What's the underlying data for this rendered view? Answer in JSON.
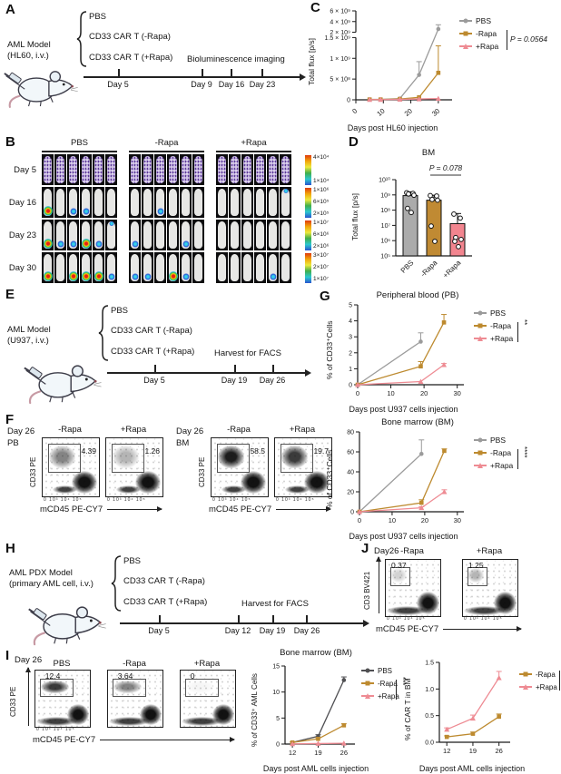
{
  "colors": {
    "pbs": "#9b9b9b",
    "pbs_dark": "#4f4f52",
    "minus_rapa": "#bd8a2f",
    "plus_rapa": "#ee8b93",
    "bar_pbs": "#ababab",
    "bar_minus": "#c08a33",
    "bar_plus": "#f2858f"
  },
  "flow": {
    "xticks": "0    10³   10⁴   10⁵"
  },
  "panelA": {
    "label": "A",
    "model1": "AML Model",
    "model2": "(HL60, i.v.)",
    "treatments": [
      "PBS",
      "CD33 CAR T (-Rapa)",
      "CD33 CAR T (+Rapa)"
    ],
    "note": "Bioluminescence imaging",
    "days": [
      "Day 5",
      "Day 9",
      "Day 16",
      "Day 23"
    ]
  },
  "panelB": {
    "label": "B",
    "columns": [
      "PBS",
      "-Rapa",
      "+Rapa"
    ],
    "rows": [
      {
        "day": "Day 5",
        "purple": true,
        "spots": [
          [
            0,
            0,
            0,
            0,
            0,
            0
          ],
          [
            0,
            0,
            0,
            0,
            0,
            0
          ],
          [
            0,
            0,
            0,
            0,
            0,
            0
          ]
        ]
      },
      {
        "day": "Day 16",
        "purple": false,
        "spots": [
          [
            2,
            0,
            1,
            1,
            0,
            0
          ],
          [
            0,
            0,
            1,
            0,
            0,
            0
          ],
          [
            0,
            0,
            0,
            0,
            0,
            3
          ]
        ]
      },
      {
        "day": "Day 23",
        "purple": false,
        "spots": [
          [
            2,
            1,
            1,
            2,
            1,
            3
          ],
          [
            1,
            0,
            0,
            0,
            1,
            0
          ],
          [
            0,
            0,
            0,
            0,
            0,
            0
          ]
        ]
      },
      {
        "day": "Day 30",
        "purple": false,
        "spots": [
          [
            2,
            0,
            2,
            2,
            2,
            1
          ],
          [
            1,
            1,
            0,
            2,
            1,
            0
          ],
          [
            0,
            0,
            0,
            0,
            1,
            0
          ]
        ]
      }
    ],
    "colorbars": [
      [
        "4×10⁴",
        "1×10⁴"
      ],
      [
        "1×10⁶",
        "6×10⁵",
        "2×10⁵"
      ],
      [
        "1×10⁷",
        "6×10⁶",
        "2×10⁶"
      ],
      [
        "3×10⁷",
        "2×10⁷",
        "1×10⁷"
      ]
    ]
  },
  "panelE": {
    "label": "E",
    "model1": "AML Model",
    "model2": "(U937, i.v.)",
    "treatments": [
      "PBS",
      "CD33 CAR T (-Rapa)",
      "CD33 CAR T (+Rapa)"
    ],
    "note": "Harvest for FACS",
    "days": [
      "Day 5",
      "Day 19",
      "Day 26"
    ]
  },
  "panelF": {
    "label": "F",
    "ylabel": "CD33 PE",
    "xlabel": "mCD45 PE-CY7",
    "groups": [
      {
        "day": "Day 26",
        "site": "PB",
        "plots": [
          {
            "name": "-Rapa",
            "value": "4.39"
          },
          {
            "name": "+Rapa",
            "value": "1.26"
          }
        ]
      },
      {
        "day": "Day 26",
        "site": "BM",
        "plots": [
          {
            "name": "-Rapa",
            "value": "58.5"
          },
          {
            "name": "+Rapa",
            "value": "19.7"
          }
        ]
      }
    ]
  },
  "panelG": {
    "label": "G"
  },
  "panelH": {
    "label": "H",
    "model1": "AML PDX Model",
    "model2": "(primary AML cell, i.v.)",
    "treatments": [
      "PBS",
      "CD33 CAR T (-Rapa)",
      "CD33 CAR T (+Rapa)"
    ],
    "note": "Harvest for FACS",
    "days": [
      "Day 5",
      "Day 12",
      "Day 19",
      "Day 26"
    ]
  },
  "panelI": {
    "label": "I",
    "day": "Day 26",
    "ylabel": "CD33 PE",
    "xlabel": "mCD45 PE-CY7",
    "plots": [
      {
        "name": "PBS",
        "value": "12.4"
      },
      {
        "name": "-Rapa",
        "value": "3.64"
      },
      {
        "name": "+Rapa",
        "value": "0"
      }
    ]
  },
  "panelJ": {
    "label": "J",
    "day": "Day26",
    "ylabel": "CD3 BV421",
    "xlabel": "mCD45 PE-CY7",
    "plots": [
      {
        "name": "-Rapa",
        "value": "0.37"
      },
      {
        "name": "+Rapa",
        "value": "1.25"
      }
    ]
  },
  "chart_data": [
    {
      "id": "C",
      "type": "line",
      "panel": "C",
      "title": "",
      "xlabel": "Days post HL60 injection",
      "ylabel": "Total flux [p/s]",
      "x": [
        5,
        9,
        16,
        23,
        30
      ],
      "xticks": [
        0,
        10,
        20,
        30
      ],
      "xlim": [
        0,
        35
      ],
      "xrot": true,
      "mleft": 40,
      "ybreak": {
        "lower_max": 1500000000.0,
        "upper_min": 2000000000.0,
        "upper_max": 6000000000.0
      },
      "yticks": [
        {
          "v": 0,
          "label": "0"
        },
        {
          "v": 500000000.0,
          "label": "5 × 10⁸"
        },
        {
          "v": 1000000000.0,
          "label": "1 × 10⁹"
        },
        {
          "v": 1500000000.0,
          "label": "1.5 × 10⁹"
        },
        {
          "v": 2000000000.0,
          "label": "2 × 10⁹"
        },
        {
          "v": 4000000000.0,
          "label": "4 × 10⁹"
        },
        {
          "v": 6000000000.0,
          "label": "6 × 10⁹"
        }
      ],
      "series": [
        {
          "name": "PBS",
          "color": "pbs",
          "marker": "circle",
          "values": [
            10000000.0,
            10000000.0,
            30000000.0,
            600000000.0,
            2600000000.0
          ],
          "err": [
            0,
            0,
            0,
            320000000.0,
            800000000.0
          ]
        },
        {
          "name": "-Rapa",
          "color": "minus_rapa",
          "marker": "square",
          "values": [
            8000000.0,
            8000000.0,
            20000000.0,
            60000000.0,
            650000000.0
          ],
          "err": [
            0,
            0,
            0,
            0,
            650000000.0
          ]
        },
        {
          "name": "+Rapa",
          "color": "plus_rapa",
          "marker": "tri",
          "values": [
            5000000.0,
            5000000.0,
            10000000.0,
            20000000.0,
            30000000.0
          ],
          "err": [
            0,
            0,
            0,
            0,
            0
          ]
        }
      ],
      "sig": "P = 0.0564",
      "legend_position": "right"
    },
    {
      "id": "D",
      "type": "bar",
      "panel": "D",
      "title": "BM",
      "ylabel": "Total flux [p/s]",
      "ylog": true,
      "categories": [
        "PBS",
        "-Rapa",
        "+Rapa"
      ],
      "values": [
        900000000.0,
        450000000.0,
        13000000.0
      ],
      "bar_colors": [
        "bar_pbs",
        "bar_minus",
        "bar_plus"
      ],
      "errtop": [
        1600000000.0,
        950000000.0,
        60000000.0
      ],
      "points": [
        [
          1400000000.0,
          1250000000.0,
          1150000000.0,
          950000000.0,
          130000000.0,
          70000000.0
        ],
        [
          900000000.0,
          850000000.0,
          500000000.0,
          450000000.0,
          9000000.0,
          900000.0
        ],
        [
          55000000.0,
          30000000.0,
          1600000.0,
          1200000.0,
          900000.0,
          400000.0
        ]
      ],
      "yticks": [
        {
          "v": 10000000000.0,
          "label": "10¹⁰"
        },
        {
          "v": 1000000000.0,
          "label": "10⁹"
        },
        {
          "v": 100000000.0,
          "label": "10⁸"
        },
        {
          "v": 10000000.0,
          "label": "10⁷"
        },
        {
          "v": 1000000.0,
          "label": "10⁶"
        },
        {
          "v": 100000.0,
          "label": "10⁵"
        }
      ],
      "ylim": [
        100000.0,
        10000000000.0
      ],
      "sig": "P = 0.078"
    },
    {
      "id": "G_PB",
      "type": "line",
      "panel": "G",
      "title": "Peripheral blood (PB)",
      "xlabel": "Days post U937 cells injection",
      "ylabel": "% of CD33⁺Cells",
      "x": [
        0,
        19,
        26
      ],
      "xticks": [
        0,
        10,
        20,
        30
      ],
      "xlim": [
        0,
        32
      ],
      "ylim": [
        0,
        5
      ],
      "mleft": 22,
      "yticks": [
        {
          "v": 0,
          "label": "0"
        },
        {
          "v": 1,
          "label": "1"
        },
        {
          "v": 2,
          "label": "2"
        },
        {
          "v": 3,
          "label": "3"
        },
        {
          "v": 4,
          "label": "4"
        },
        {
          "v": 5,
          "label": "5"
        }
      ],
      "series": [
        {
          "name": "PBS",
          "color": "pbs",
          "marker": "circle",
          "values": [
            0,
            2.7,
            null
          ],
          "err": [
            0,
            0.55,
            0
          ]
        },
        {
          "name": "-Rapa",
          "color": "minus_rapa",
          "marker": "square",
          "values": [
            0,
            1.15,
            3.9
          ],
          "err": [
            0,
            0.3,
            0.5
          ]
        },
        {
          "name": "+Rapa",
          "color": "plus_rapa",
          "marker": "tri",
          "values": [
            0,
            0.2,
            1.25
          ],
          "err": [
            0,
            0,
            0.08
          ]
        }
      ],
      "sig": "**",
      "legend_position": "right"
    },
    {
      "id": "G_BM",
      "type": "line",
      "panel": "G",
      "title": "Bone marrow (BM)",
      "xlabel": "Days post U937 cells injection",
      "ylabel": "% of CD33⁺Cells",
      "x": [
        0,
        19,
        26
      ],
      "xticks": [
        0,
        10,
        20,
        30
      ],
      "xlim": [
        0,
        32
      ],
      "ylim": [
        0,
        80
      ],
      "mleft": 24,
      "yticks": [
        {
          "v": 0,
          "label": "0"
        },
        {
          "v": 20,
          "label": "20"
        },
        {
          "v": 40,
          "label": "40"
        },
        {
          "v": 60,
          "label": "60"
        },
        {
          "v": 80,
          "label": "80"
        }
      ],
      "series": [
        {
          "name": "PBS",
          "color": "pbs",
          "marker": "circle",
          "values": [
            0,
            58,
            null
          ],
          "err": [
            0,
            14,
            0
          ]
        },
        {
          "name": "-Rapa",
          "color": "minus_rapa",
          "marker": "square",
          "values": [
            0,
            9,
            61
          ],
          "err": [
            0,
            3,
            2
          ]
        },
        {
          "name": "+Rapa",
          "color": "plus_rapa",
          "marker": "tri",
          "values": [
            0,
            4,
            20
          ],
          "err": [
            0,
            1,
            2
          ]
        }
      ],
      "sig": "****",
      "legend_position": "right"
    },
    {
      "id": "I_BM",
      "type": "line",
      "panel": "I",
      "title": "Bone marrow (BM)",
      "xlabel": "Days post AML cells injection",
      "ylabel": "% of CD33⁺ AML Cells",
      "x": [
        12,
        19,
        26
      ],
      "xticks": [
        12,
        19,
        26
      ],
      "xlim": [
        10,
        29
      ],
      "ylim": [
        0,
        15
      ],
      "mleft": 22,
      "yticks": [
        {
          "v": 0,
          "label": "0"
        },
        {
          "v": 5,
          "label": "5"
        },
        {
          "v": 10,
          "label": "10"
        },
        {
          "v": 15,
          "label": "15"
        }
      ],
      "series": [
        {
          "name": "PBS",
          "color": "pbs_dark",
          "marker": "circle",
          "values": [
            0.3,
            1.5,
            12.3
          ],
          "err": [
            0,
            0.3,
            0.6
          ]
        },
        {
          "name": "-Rapa",
          "color": "minus_rapa",
          "marker": "square",
          "values": [
            0.3,
            1.0,
            3.6
          ],
          "err": [
            0.1,
            0.2,
            0.3
          ]
        },
        {
          "name": "+Rapa",
          "color": "plus_rapa",
          "marker": "tri",
          "values": [
            0.05,
            0.1,
            0.15
          ],
          "err": [
            0,
            0,
            0
          ]
        }
      ],
      "sig": "***",
      "legend_position": "right"
    },
    {
      "id": "J_CAR",
      "type": "line",
      "panel": "J",
      "title": "",
      "xlabel": "Days post AML cells injection",
      "ylabel": "% of CAR T in BM",
      "x": [
        12,
        19,
        26
      ],
      "xticks": [
        12,
        19,
        26
      ],
      "xlim": [
        10,
        29
      ],
      "ylim": [
        0,
        1.5
      ],
      "mleft": 26,
      "yticks": [
        {
          "v": 0,
          "label": "0.0"
        },
        {
          "v": 0.5,
          "label": "0.5"
        },
        {
          "v": 1.0,
          "label": "1.0"
        },
        {
          "v": 1.5,
          "label": "1.5"
        }
      ],
      "series": [
        {
          "name": "-Rapa",
          "color": "minus_rapa",
          "marker": "square",
          "values": [
            0.1,
            0.16,
            0.48
          ],
          "err": [
            0.02,
            0.03,
            0.05
          ]
        },
        {
          "name": "+Rapa",
          "color": "plus_rapa",
          "marker": "tri",
          "values": [
            0.24,
            0.45,
            1.21
          ],
          "err": [
            0.03,
            0.06,
            0.12
          ]
        }
      ],
      "sig": "***",
      "legend_position": "right"
    }
  ]
}
